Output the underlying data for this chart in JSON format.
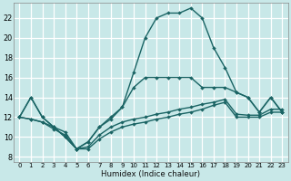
{
  "xlabel": "Humidex (Indice chaleur)",
  "xlim": [
    -0.5,
    23.5
  ],
  "ylim": [
    7.5,
    23.5
  ],
  "yticks": [
    8,
    10,
    12,
    14,
    16,
    18,
    20,
    22
  ],
  "xticks": [
    0,
    1,
    2,
    3,
    4,
    5,
    6,
    7,
    8,
    9,
    10,
    11,
    12,
    13,
    14,
    15,
    16,
    17,
    18,
    19,
    20,
    21,
    22,
    23
  ],
  "bg_color": "#c8e8e8",
  "grid_color": "#ffffff",
  "line_color": "#1a6464",
  "line_width": 1.0,
  "marker_size": 2.0,
  "lines": [
    {
      "x": [
        0,
        1,
        2,
        3,
        4,
        5,
        6,
        7,
        8,
        9,
        10,
        11,
        12,
        13,
        14,
        15,
        16,
        17,
        18,
        19,
        20,
        21,
        22,
        23
      ],
      "y": [
        12,
        14,
        12,
        11,
        10,
        8.8,
        9.5,
        11,
        11.8,
        13,
        15,
        16,
        16,
        16,
        16,
        16,
        15,
        15,
        15,
        14.5,
        14,
        12.5,
        14,
        12.5
      ]
    },
    {
      "x": [
        0,
        1,
        2,
        3,
        4,
        5,
        6,
        7,
        8,
        9,
        10,
        11,
        12,
        13,
        14,
        15,
        16,
        17,
        18,
        19,
        20,
        21,
        22,
        23
      ],
      "y": [
        12,
        14,
        12,
        11,
        10,
        8.8,
        9.5,
        11,
        12,
        13,
        16.5,
        20,
        22,
        22.5,
        22.5,
        23,
        22,
        19,
        17,
        14.5,
        14,
        12.5,
        14,
        12.5
      ]
    },
    {
      "x": [
        0,
        1,
        2,
        3,
        4,
        5,
        6,
        7,
        8,
        9,
        10,
        11,
        12,
        13,
        14,
        15,
        16,
        17,
        18,
        19,
        20,
        21,
        22,
        23
      ],
      "y": [
        12,
        11.8,
        11.5,
        11.0,
        10.5,
        8.8,
        9.0,
        10.2,
        11.0,
        11.5,
        11.8,
        12.0,
        12.3,
        12.5,
        12.8,
        13.0,
        13.3,
        13.5,
        13.8,
        12.3,
        12.2,
        12.2,
        12.8,
        12.8
      ]
    },
    {
      "x": [
        0,
        1,
        2,
        3,
        4,
        5,
        6,
        7,
        8,
        9,
        10,
        11,
        12,
        13,
        14,
        15,
        16,
        17,
        18,
        19,
        20,
        21,
        22,
        23
      ],
      "y": [
        12,
        11.8,
        11.5,
        10.8,
        10.2,
        8.8,
        8.8,
        9.8,
        10.5,
        11.0,
        11.3,
        11.5,
        11.8,
        12.0,
        12.3,
        12.5,
        12.8,
        13.2,
        13.5,
        12.0,
        12.0,
        12.0,
        12.5,
        12.5
      ]
    }
  ]
}
